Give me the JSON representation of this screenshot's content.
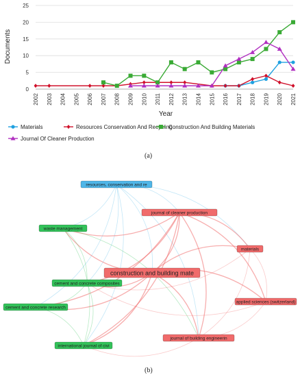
{
  "chart_data": {
    "type": "line",
    "xlabel": "Year",
    "ylabel": "Documents",
    "ylim": [
      0,
      25
    ],
    "yticks": [
      0,
      5,
      10,
      15,
      20,
      25
    ],
    "categories": [
      "2002",
      "2003",
      "2004",
      "2005",
      "2006",
      "2007",
      "2008",
      "2009",
      "2010",
      "2011",
      "2012",
      "2013",
      "2014",
      "2015",
      "2016",
      "2017",
      "2018",
      "2019",
      "2020",
      "2021"
    ],
    "series": [
      {
        "name": "Materials",
        "color": "#1ea0e0",
        "marker": "circle",
        "x": [
          "2016",
          "2017",
          "2018",
          "2019",
          "2020",
          "2021"
        ],
        "values": [
          1,
          1,
          2,
          3,
          8,
          8
        ]
      },
      {
        "name": "Resources Conservation And Recycling",
        "color": "#d0102a",
        "marker": "diamond",
        "x": [
          "2002",
          "2003",
          "2006",
          "2007",
          "2008",
          "2009",
          "2010",
          "2011",
          "2012",
          "2013",
          "2015",
          "2016",
          "2017",
          "2018",
          "2019",
          "2020",
          "2021"
        ],
        "values": [
          1,
          1,
          1,
          1,
          1,
          1.5,
          2,
          2,
          2,
          2,
          1,
          1,
          1,
          3,
          4,
          2,
          1
        ]
      },
      {
        "name": "Construction And Building Materials",
        "color": "#3aaa35",
        "marker": "square",
        "x": [
          "2007",
          "2008",
          "2009",
          "2010",
          "2011",
          "2012",
          "2013",
          "2014",
          "2015",
          "2016",
          "2017",
          "2018",
          "2019",
          "2020",
          "2021"
        ],
        "values": [
          2,
          1,
          4,
          4,
          2,
          8,
          6,
          8,
          5,
          6,
          8,
          9,
          12,
          17,
          20
        ]
      },
      {
        "name": "Journal Of Cleaner Production",
        "color": "#b030c0",
        "marker": "triangle",
        "x": [
          "2009",
          "2010",
          "2011",
          "2012",
          "2013",
          "2014",
          "2015",
          "2016",
          "2017",
          "2018",
          "2019",
          "2020",
          "2021"
        ],
        "values": [
          1,
          1,
          1,
          1,
          1,
          1,
          1,
          7,
          9,
          11,
          14,
          12,
          6
        ]
      }
    ],
    "legend": "bottom"
  },
  "captions": {
    "a": "(a)",
    "b": "(b)"
  },
  "network": {
    "nodes": [
      {
        "id": "rcr",
        "label": "resources, conservation and re",
        "color": "#4fb6e8",
        "big": false
      },
      {
        "id": "jcp",
        "label": "journal of cleaner production",
        "color": "#f06b6b",
        "big": false
      },
      {
        "id": "wm",
        "label": "waste management",
        "color": "#33c25a",
        "big": false
      },
      {
        "id": "mat",
        "label": "materials",
        "color": "#f06b6b",
        "big": false
      },
      {
        "id": "cbm",
        "label": "construction and building mate",
        "color": "#f06b6b",
        "big": true
      },
      {
        "id": "ccc",
        "label": "cement and concrete composites",
        "color": "#33c25a",
        "big": false
      },
      {
        "id": "as",
        "label": "applied sciences (switzerland)",
        "color": "#f06b6b",
        "big": false
      },
      {
        "id": "ccr",
        "label": "cement and concrete research",
        "color": "#33c25a",
        "big": false
      },
      {
        "id": "jbe",
        "label": "journal of building engineerin",
        "color": "#f06b6b",
        "big": false
      },
      {
        "id": "ijc",
        "label": "international journal of civi",
        "color": "#33c25a",
        "big": false
      }
    ],
    "edges": [
      [
        "rcr",
        "jcp"
      ],
      [
        "rcr",
        "wm"
      ],
      [
        "rcr",
        "cbm"
      ],
      [
        "rcr",
        "mat"
      ],
      [
        "rcr",
        "ccc"
      ],
      [
        "rcr",
        "jbe"
      ],
      [
        "rcr",
        "ccr"
      ],
      [
        "rcr",
        "ijc"
      ],
      [
        "jcp",
        "cbm"
      ],
      [
        "jcp",
        "mat"
      ],
      [
        "jcp",
        "as"
      ],
      [
        "jcp",
        "jbe"
      ],
      [
        "jcp",
        "wm"
      ],
      [
        "jcp",
        "ccc"
      ],
      [
        "jcp",
        "ijc"
      ],
      [
        "jcp",
        "ccr"
      ],
      [
        "cbm",
        "mat"
      ],
      [
        "cbm",
        "as"
      ],
      [
        "cbm",
        "jbe"
      ],
      [
        "cbm",
        "ccc"
      ],
      [
        "cbm",
        "ccr"
      ],
      [
        "cbm",
        "ijc"
      ],
      [
        "cbm",
        "wm"
      ],
      [
        "mat",
        "as"
      ],
      [
        "mat",
        "jbe"
      ],
      [
        "as",
        "jbe"
      ],
      [
        "ccc",
        "ccr"
      ],
      [
        "ccc",
        "ijc"
      ],
      [
        "wm",
        "ccc"
      ],
      [
        "wm",
        "ijc"
      ],
      [
        "ccr",
        "ijc"
      ],
      [
        "jbe",
        "ijc"
      ],
      [
        "as",
        "ccc"
      ],
      [
        "mat",
        "ccc"
      ],
      [
        "wm",
        "jbe"
      ]
    ]
  }
}
